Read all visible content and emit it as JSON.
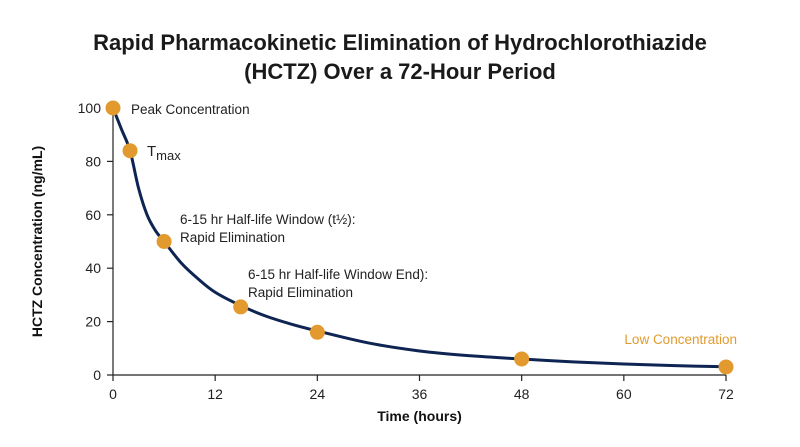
{
  "chart_data": {
    "type": "line",
    "title_lines": [
      "Rapid Pharmacokinetic Elimination of Hydrochlorothiazide",
      "(HCTZ) Over a 72-Hour Period"
    ],
    "xlabel": "Time (hours)",
    "ylabel": "HCTZ Concentration (ng/mL)",
    "xlim": [
      0,
      72
    ],
    "ylim": [
      0,
      100
    ],
    "xticks": [
      0,
      12,
      24,
      36,
      48,
      60,
      72
    ],
    "yticks": [
      0,
      20,
      40,
      60,
      80,
      100
    ],
    "grid": false,
    "curve": {
      "x": [
        0,
        1,
        2,
        3,
        4,
        5,
        6,
        8,
        10,
        12,
        15,
        18,
        21,
        24,
        30,
        36,
        42,
        48,
        54,
        60,
        66,
        72
      ],
      "y": [
        100,
        92,
        84,
        70,
        60,
        54,
        50,
        42,
        36,
        31,
        26,
        22,
        19,
        16.5,
        12,
        9,
        7.2,
        6,
        4.9,
        4.1,
        3.5,
        3.1
      ]
    },
    "points": [
      {
        "x": 0,
        "y": 100
      },
      {
        "x": 2,
        "y": 84
      },
      {
        "x": 6,
        "y": 50
      },
      {
        "x": 15,
        "y": 25.5
      },
      {
        "x": 24,
        "y": 16
      },
      {
        "x": 48,
        "y": 6
      },
      {
        "x": 72,
        "y": 3
      }
    ],
    "annotations": [
      {
        "lines": [
          "Peak Concentration"
        ]
      },
      {
        "main": "T",
        "sub": "max"
      },
      {
        "lines": [
          "6-15 hr Half-life Window (t½):",
          "Rapid Elimination"
        ]
      },
      {
        "lines": [
          "6-15 hr Half-life Window End):",
          "Rapid Elimination"
        ]
      },
      {
        "lines": [
          "Low Concentration"
        ]
      }
    ],
    "colors": {
      "line": "#0e2452",
      "marker": "#e29a2e",
      "low_label": "#e29a2e",
      "axis": "#222222",
      "text": "#222222"
    }
  }
}
